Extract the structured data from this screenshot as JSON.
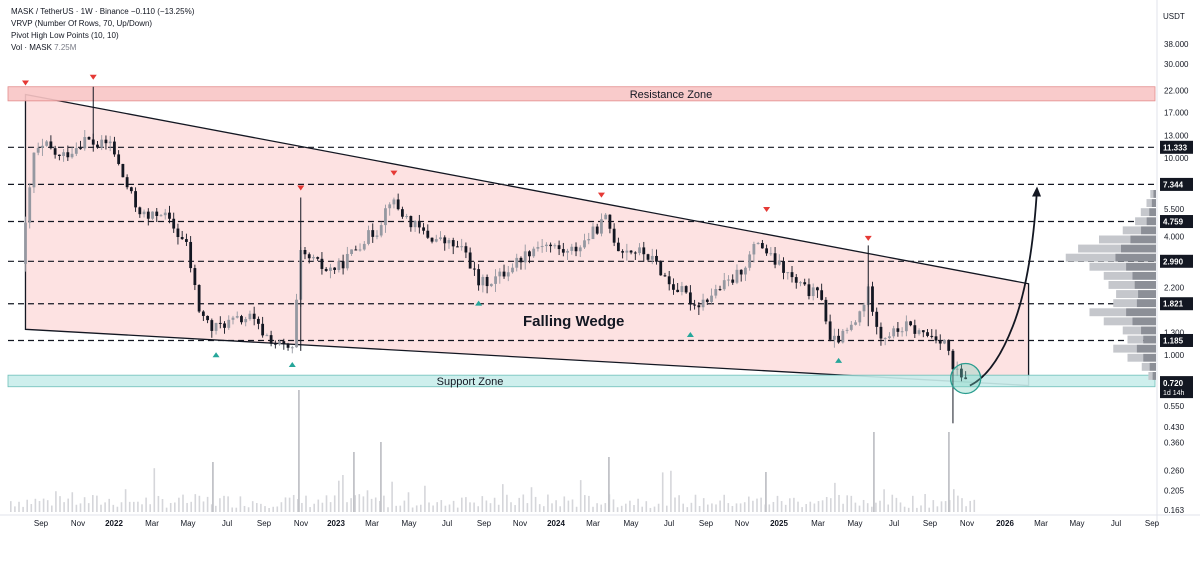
{
  "legend": {
    "symbol_line": "MASK / TetherUS · 1W · Binance",
    "change": "−0.110 (−13.25%)",
    "indicator_vrvp": "VRVP (Number Of Rows, 70, Up/Down)",
    "indicator_pivot": "Pivot High Low Points (10, 10)",
    "vol_label": "Vol · MASK",
    "vol_value": "7.25M"
  },
  "colors": {
    "wedge_fill": "#fde2e2",
    "resistance_fill": "#f9c6c6",
    "support_fill": "#c9eeec",
    "bull": "#9598a1",
    "bear": "#131722",
    "pivot_high": "#e53935",
    "pivot_low": "#26a69a",
    "tag_bg": "#131722"
  },
  "chart_data": {
    "type": "candlestick",
    "title": "MASK / TetherUS · 1W · Binance",
    "y_scale": "log",
    "y_axis_unit": "USDT",
    "ylim": [
      0.15,
      45
    ],
    "x_tick_labels": [
      "Sep",
      "Nov",
      "2022",
      "Mar",
      "May",
      "Jul",
      "Sep",
      "Nov",
      "2023",
      "Mar",
      "May",
      "Jul",
      "Sep",
      "Nov",
      "2024",
      "Mar",
      "May",
      "Jul",
      "Sep",
      "Nov",
      "2025",
      "Mar",
      "May",
      "Jul",
      "Sep",
      "Nov",
      "2026",
      "Mar",
      "May",
      "Jul",
      "Sep"
    ],
    "y_tick_labels": [
      {
        "label": "38.000",
        "v": 38
      },
      {
        "label": "30.000",
        "v": 30
      },
      {
        "label": "22.000",
        "v": 22
      },
      {
        "label": "17.000",
        "v": 17
      },
      {
        "label": "13.000",
        "v": 13
      },
      {
        "label": "10.000",
        "v": 10
      },
      {
        "label": "5.500",
        "v": 5.5
      },
      {
        "label": "4.000",
        "v": 4
      },
      {
        "label": "2.200",
        "v": 2.2
      },
      {
        "label": "1.300",
        "v": 1.3
      },
      {
        "label": "1.000",
        "v": 1
      },
      {
        "label": "0.550",
        "v": 0.55
      },
      {
        "label": "0.430",
        "v": 0.43
      },
      {
        "label": "0.360",
        "v": 0.36
      },
      {
        "label": "0.260",
        "v": 0.26
      },
      {
        "label": "0.205",
        "v": 0.205
      },
      {
        "label": "0.163",
        "v": 0.163
      }
    ],
    "horizontal_levels": [
      {
        "label": "11.333",
        "v": 11.333
      },
      {
        "label": "7.344",
        "v": 7.344
      },
      {
        "label": "4.759",
        "v": 4.759
      },
      {
        "label": "2.990",
        "v": 2.99
      },
      {
        "label": "1.821",
        "v": 1.821
      },
      {
        "label": "1.185",
        "v": 1.185
      }
    ],
    "last_price": {
      "label": "0.720",
      "countdown": "1d 14h",
      "v": 0.72
    },
    "zones": [
      {
        "label": "Resistance Zone",
        "low": 19.5,
        "high": 23
      },
      {
        "label": "Support Zone",
        "low": 0.69,
        "high": 0.79
      }
    ],
    "annotation": "Falling Wedge",
    "wedge": {
      "upper": [
        {
          "date": "2021-08-02",
          "v": 21
        },
        {
          "date": "2026-02-15",
          "v": 2.3
        }
      ],
      "lower": [
        {
          "date": "2021-08-02",
          "v": 1.35
        },
        {
          "date": "2026-02-15",
          "v": 0.7
        }
      ]
    },
    "projection": [
      {
        "date": "2025-11-10",
        "v": 0.7
      },
      {
        "date": "2025-12-20",
        "v": 0.8
      },
      {
        "date": "2026-01-20",
        "v": 1.4
      },
      {
        "date": "2026-02-20",
        "v": 4.0
      },
      {
        "date": "2026-03-01",
        "v": 7.0
      }
    ],
    "pivot_highs": [
      {
        "date": "2021-08-02",
        "v": 21.5
      },
      {
        "date": "2021-11-22",
        "v": 23
      },
      {
        "date": "2022-10-31",
        "v": 6.3
      },
      {
        "date": "2023-04-03",
        "v": 7.5
      },
      {
        "date": "2024-03-11",
        "v": 5.8
      },
      {
        "date": "2024-12-09",
        "v": 4.9
      },
      {
        "date": "2025-05-26",
        "v": 3.5
      }
    ],
    "pivot_lows": [
      {
        "date": "2022-06-13",
        "v": 1.12
      },
      {
        "date": "2022-10-17",
        "v": 1.0
      },
      {
        "date": "2023-08-21",
        "v": 2.05
      },
      {
        "date": "2024-08-05",
        "v": 1.42
      },
      {
        "date": "2025-04-07",
        "v": 1.05
      }
    ],
    "series": [
      {
        "name": "MASK/USDT weekly (approx. closes)",
        "points": [
          {
            "date": "2021-07-26",
            "v": 2.9
          },
          {
            "date": "2021-08-16",
            "v": 10.5
          },
          {
            "date": "2021-09-06",
            "v": 11.5
          },
          {
            "date": "2021-09-27",
            "v": 10.0
          },
          {
            "date": "2021-10-18",
            "v": 11.0
          },
          {
            "date": "2021-11-08",
            "v": 12.5
          },
          {
            "date": "2021-11-29",
            "v": 11.5
          },
          {
            "date": "2021-12-20",
            "v": 12.0
          },
          {
            "date": "2022-01-10",
            "v": 8.0
          },
          {
            "date": "2022-01-31",
            "v": 5.7
          },
          {
            "date": "2022-02-21",
            "v": 4.9
          },
          {
            "date": "2022-03-14",
            "v": 5.4
          },
          {
            "date": "2022-04-04",
            "v": 4.4
          },
          {
            "date": "2022-04-25",
            "v": 3.6
          },
          {
            "date": "2022-05-16",
            "v": 1.7
          },
          {
            "date": "2022-06-06",
            "v": 1.35
          },
          {
            "date": "2022-06-27",
            "v": 1.45
          },
          {
            "date": "2022-07-18",
            "v": 1.5
          },
          {
            "date": "2022-08-08",
            "v": 1.55
          },
          {
            "date": "2022-08-29",
            "v": 1.3
          },
          {
            "date": "2022-09-19",
            "v": 1.15
          },
          {
            "date": "2022-10-17",
            "v": 1.05
          },
          {
            "date": "2022-10-31",
            "v": 3.2
          },
          {
            "date": "2022-11-21",
            "v": 3.0
          },
          {
            "date": "2022-12-12",
            "v": 2.7
          },
          {
            "date": "2023-01-02",
            "v": 2.8
          },
          {
            "date": "2023-01-23",
            "v": 3.3
          },
          {
            "date": "2023-02-13",
            "v": 3.9
          },
          {
            "date": "2023-03-06",
            "v": 4.3
          },
          {
            "date": "2023-03-27",
            "v": 6.2
          },
          {
            "date": "2023-04-17",
            "v": 5.2
          },
          {
            "date": "2023-05-08",
            "v": 4.5
          },
          {
            "date": "2023-05-29",
            "v": 4.0
          },
          {
            "date": "2023-06-19",
            "v": 3.8
          },
          {
            "date": "2023-07-10",
            "v": 3.6
          },
          {
            "date": "2023-07-31",
            "v": 3.3
          },
          {
            "date": "2023-08-21",
            "v": 2.3
          },
          {
            "date": "2023-09-11",
            "v": 2.4
          },
          {
            "date": "2023-10-02",
            "v": 2.6
          },
          {
            "date": "2023-10-23",
            "v": 3.0
          },
          {
            "date": "2023-11-13",
            "v": 3.4
          },
          {
            "date": "2023-12-04",
            "v": 3.7
          },
          {
            "date": "2023-12-25",
            "v": 3.5
          },
          {
            "date": "2024-01-15",
            "v": 3.3
          },
          {
            "date": "2024-02-05",
            "v": 3.6
          },
          {
            "date": "2024-02-26",
            "v": 4.2
          },
          {
            "date": "2024-03-18",
            "v": 4.9
          },
          {
            "date": "2024-04-08",
            "v": 3.5
          },
          {
            "date": "2024-04-29",
            "v": 3.4
          },
          {
            "date": "2024-05-20",
            "v": 3.3
          },
          {
            "date": "2024-06-10",
            "v": 2.9
          },
          {
            "date": "2024-07-01",
            "v": 2.3
          },
          {
            "date": "2024-07-22",
            "v": 2.1
          },
          {
            "date": "2024-08-12",
            "v": 1.8
          },
          {
            "date": "2024-09-02",
            "v": 1.95
          },
          {
            "date": "2024-09-23",
            "v": 2.2
          },
          {
            "date": "2024-10-14",
            "v": 2.4
          },
          {
            "date": "2024-11-04",
            "v": 2.9
          },
          {
            "date": "2024-11-25",
            "v": 3.8
          },
          {
            "date": "2024-12-16",
            "v": 3.1
          },
          {
            "date": "2025-01-06",
            "v": 2.7
          },
          {
            "date": "2025-01-27",
            "v": 2.3
          },
          {
            "date": "2025-02-17",
            "v": 2.1
          },
          {
            "date": "2025-03-10",
            "v": 2.0
          },
          {
            "date": "2025-03-24",
            "v": 1.15
          },
          {
            "date": "2025-04-14",
            "v": 1.25
          },
          {
            "date": "2025-05-05",
            "v": 1.45
          },
          {
            "date": "2025-05-26",
            "v": 2.1
          },
          {
            "date": "2025-06-16",
            "v": 1.25
          },
          {
            "date": "2025-07-07",
            "v": 1.3
          },
          {
            "date": "2025-07-28",
            "v": 1.4
          },
          {
            "date": "2025-08-18",
            "v": 1.3
          },
          {
            "date": "2025-09-08",
            "v": 1.25
          },
          {
            "date": "2025-09-29",
            "v": 1.2
          },
          {
            "date": "2025-10-13",
            "v": 0.85
          },
          {
            "date": "2025-11-03",
            "v": 0.72
          }
        ]
      }
    ]
  }
}
